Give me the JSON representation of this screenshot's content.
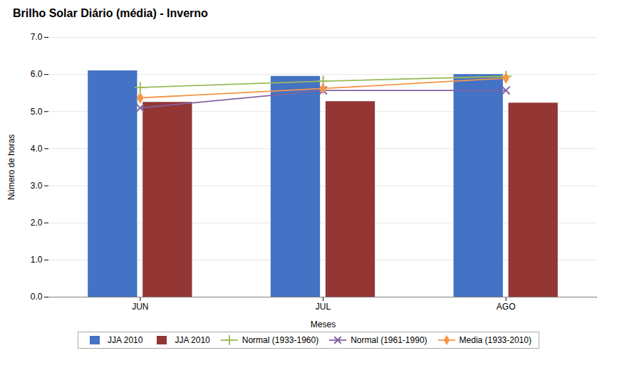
{
  "chart_data": {
    "type": "bar",
    "title": "Brilho Solar Diário (média) - Inverno",
    "xlabel": "Meses",
    "ylabel": "Número de horas",
    "categories": [
      "JUN",
      "JUL",
      "AGO"
    ],
    "series": [
      {
        "name": "JJA 2010",
        "type": "bar",
        "color": "#4472C4",
        "values": [
          6.1,
          5.95,
          6.0
        ]
      },
      {
        "name": "JJA 2010",
        "type": "bar",
        "color": "#943634",
        "values": [
          5.25,
          5.27,
          5.23
        ]
      },
      {
        "name": "Normal (1933-1960)",
        "type": "line",
        "color": "#9BBB59",
        "marker": "plus",
        "values": [
          5.65,
          5.82,
          5.95
        ]
      },
      {
        "name": "Normal (1961-1990)",
        "type": "line",
        "color": "#8064A2",
        "marker": "x",
        "values": [
          5.1,
          5.57,
          5.57
        ]
      },
      {
        "name": "Media (1933-2010)",
        "type": "line",
        "color": "#F79646",
        "marker": "diamond",
        "values": [
          5.37,
          5.62,
          5.9
        ]
      }
    ],
    "ylim": [
      0,
      7
    ],
    "yticks": [
      0,
      1,
      2,
      3,
      4,
      5,
      6,
      7
    ],
    "grid": true,
    "legend": "bottom"
  }
}
